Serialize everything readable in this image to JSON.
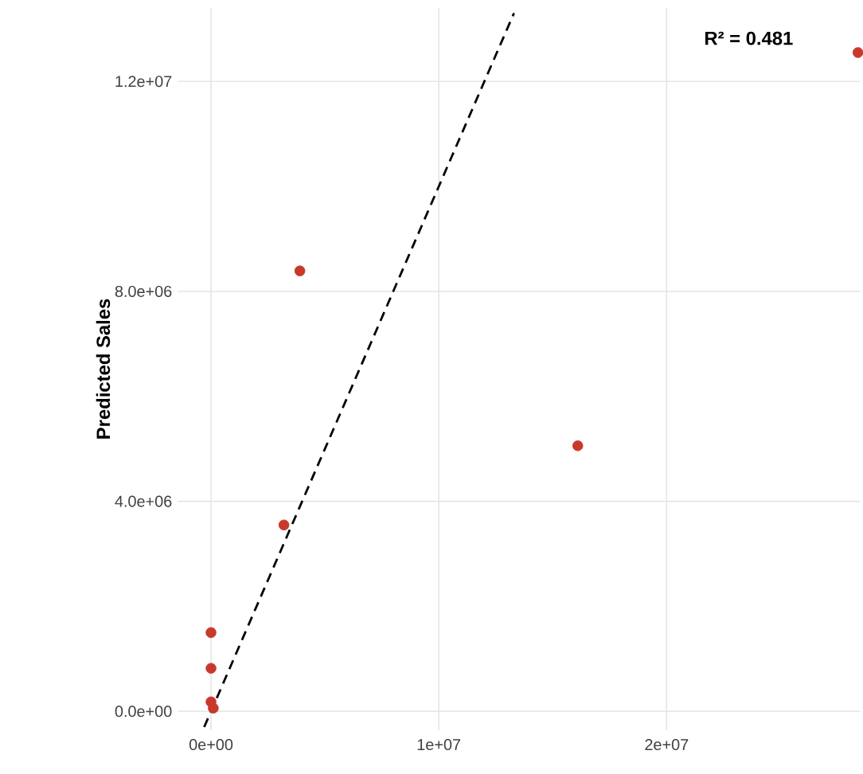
{
  "chart_data": {
    "type": "scatter",
    "ylabel": "Predicted Sales",
    "annotations": [
      "R² = 0.481"
    ],
    "xlim": [
      -1460000,
      28500000
    ],
    "ylim": [
      -360000,
      13400000
    ],
    "xticks": [
      {
        "value": 0,
        "label": "0e+00"
      },
      {
        "value": 10000000,
        "label": "1e+07"
      },
      {
        "value": 20000000,
        "label": "2e+07"
      }
    ],
    "yticks": [
      {
        "value": 0,
        "label": "0.0e+00"
      },
      {
        "value": 4000000,
        "label": "4.0e+06"
      },
      {
        "value": 8000000,
        "label": "8.0e+06"
      },
      {
        "value": 12000000,
        "label": "1.2e+07"
      }
    ],
    "grid": true,
    "series": [
      {
        "color": "#c8392b",
        "marker": "circle",
        "x": [
          28400000,
          3900000,
          16100000,
          3200000,
          0,
          0,
          0,
          100000
        ],
        "values": [
          12550000,
          8390000,
          5060000,
          3550000,
          1500000,
          820000,
          180000,
          60000
        ]
      },
      {
        "type": "line",
        "color": "#000000",
        "line_style": "dashed",
        "marker": "none",
        "x": [
          -300000,
          13300000
        ],
        "values": [
          -300000,
          13300000
        ]
      }
    ]
  }
}
